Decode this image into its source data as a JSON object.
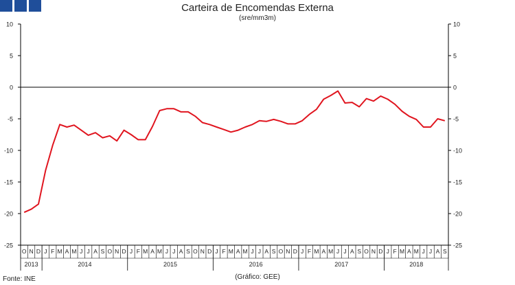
{
  "header": {
    "title": "Carteira de Encomendas Externa",
    "subtitle": "(sre/mm3m)",
    "logo_icon": "three-blue-squares-logo"
  },
  "footer": {
    "source": "Fonte: INE",
    "credit": "(Gráfico: GEE)"
  },
  "colors": {
    "line": "#e0141e",
    "axis": "#000000",
    "logo": "#1f4e9a"
  },
  "chart_data": {
    "type": "line",
    "title": "Carteira de Encomendas Externa",
    "subtitle": "(sre/mm3m)",
    "ylim": [
      -25,
      10
    ],
    "yticks": [
      10,
      5,
      0,
      -5,
      -10,
      -15,
      -20,
      -25
    ],
    "y_axis_left": true,
    "y_axis_right": true,
    "grid": false,
    "month_labels": [
      "O",
      "N",
      "D",
      "J",
      "F",
      "M",
      "A",
      "M",
      "J",
      "J",
      "A",
      "S",
      "O",
      "N",
      "D",
      "J",
      "F",
      "M",
      "A",
      "M",
      "J",
      "J",
      "A",
      "S",
      "O",
      "N",
      "D",
      "J",
      "F",
      "M",
      "A",
      "M",
      "J",
      "J",
      "A",
      "S",
      "O",
      "N",
      "D",
      "J",
      "F",
      "M",
      "A",
      "M",
      "J",
      "J",
      "A",
      "S",
      "O",
      "N",
      "D",
      "J",
      "F",
      "M",
      "A",
      "M",
      "J",
      "J",
      "A",
      "S"
    ],
    "year_labels": [
      {
        "label": "2013",
        "start": 0,
        "count": 3
      },
      {
        "label": "2014",
        "start": 3,
        "count": 12
      },
      {
        "label": "2015",
        "start": 15,
        "count": 12
      },
      {
        "label": "2016",
        "start": 27,
        "count": 12
      },
      {
        "label": "2017",
        "start": 39,
        "count": 12
      },
      {
        "label": "2018",
        "start": 51,
        "count": 9
      }
    ],
    "series": [
      {
        "values": [
          -19.8,
          -19.3,
          -18.5,
          -13.2,
          -9.2,
          -5.9,
          -6.3,
          -6.0,
          -6.8,
          -7.6,
          -7.2,
          -8.0,
          -7.7,
          -8.5,
          -6.8,
          -7.5,
          -8.3,
          -8.3,
          -6.2,
          -3.7,
          -3.4,
          -3.4,
          -3.9,
          -3.9,
          -4.6,
          -5.6,
          -5.9,
          -6.3,
          -6.7,
          -7.1,
          -6.8,
          -6.3,
          -5.9,
          -5.3,
          -5.4,
          -5.1,
          -5.4,
          -5.8,
          -5.8,
          -5.3,
          -4.3,
          -3.5,
          -1.9,
          -1.3,
          -0.6,
          -2.5,
          -2.4,
          -3.1,
          -1.8,
          -2.2,
          -1.4,
          -1.9,
          -2.7,
          -3.8,
          -4.6,
          -5.1,
          -6.3,
          -6.3,
          -5.0,
          -5.3
        ]
      }
    ]
  }
}
